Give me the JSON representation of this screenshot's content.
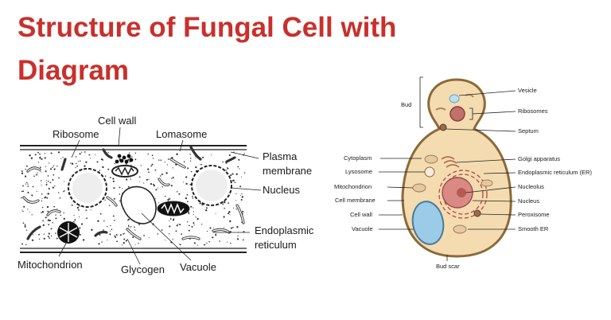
{
  "title": "Structure of Fungal Cell with Diagram",
  "colors": {
    "title": "#c9302c",
    "cell_fill": "#f4dcb0",
    "cell_outline": "#8b6a3a",
    "vacuole": "#9ccbe8"
  },
  "left_diagram": {
    "labels": {
      "cell_wall": "Cell wall",
      "ribosome": "Ribosome",
      "lomasome": "Lomasome",
      "plasma_membrane_1": "Plasma",
      "plasma_membrane_2": "membrane",
      "nucleus": "Nucleus",
      "er_1": "Endoplasmic",
      "er_2": "reticulum",
      "mitochondrion": "Mitochondrion",
      "glycogen": "Glycogen",
      "vacuole": "Vacuole"
    }
  },
  "right_diagram": {
    "labels": {
      "bud": "Bud",
      "vesicle": "Vesicle",
      "ribosomes": "Ribosomes",
      "septum": "Septum",
      "cytoplasm": "Cytoplasm",
      "golgi": "Golgi apparatus",
      "lysosome": "Lysosome",
      "er": "Endoplasmic reticulum (ER)",
      "mitochondrion": "Mitochondrion",
      "nucleolus": "Nucleolus",
      "cell_membrane": "Cell membrane",
      "nucleus": "Nucleus",
      "cell_wall": "Cell wall",
      "peroxisome": "Peroxisome",
      "vacuole": "Vacuole",
      "smooth_er": "Smooth ER",
      "bud_scar": "Bud scar"
    }
  }
}
